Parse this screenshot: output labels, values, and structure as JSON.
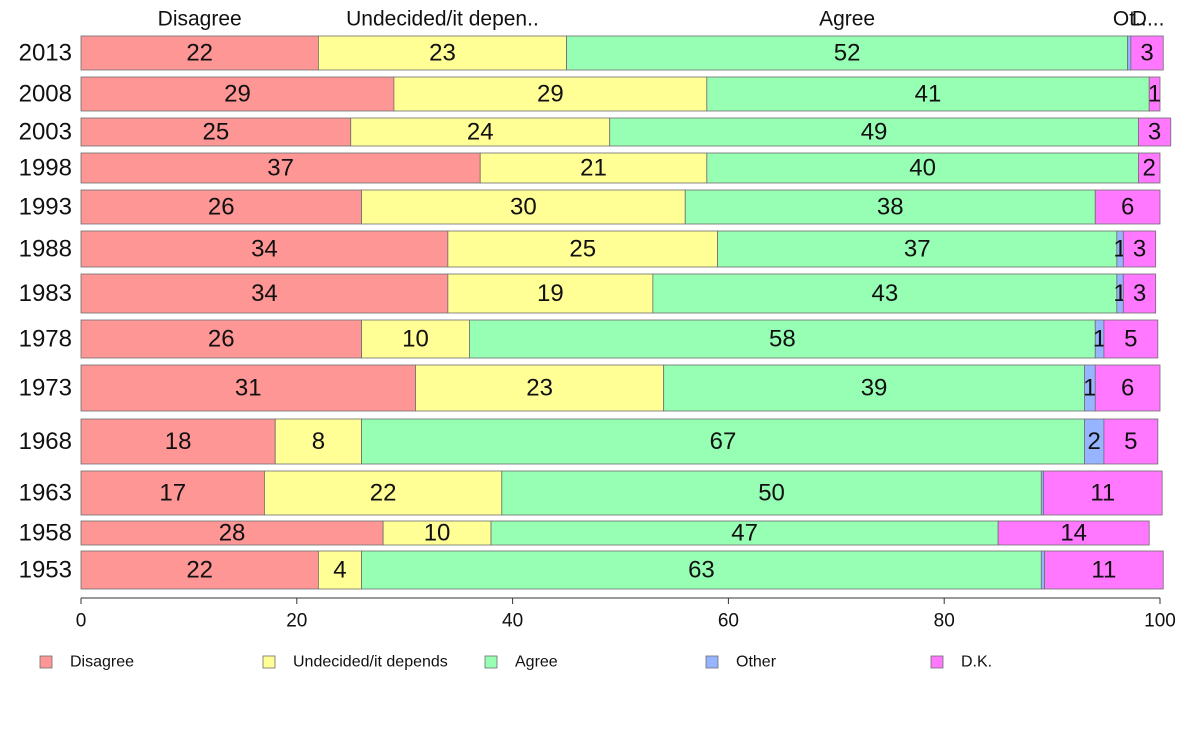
{
  "chart_data": {
    "type": "bar",
    "orientation": "horizontal",
    "stacked": true,
    "normalized_percent": true,
    "categories": [
      "2013",
      "2008",
      "2003",
      "1998",
      "1993",
      "1988",
      "1983",
      "1978",
      "1973",
      "1968",
      "1963",
      "1958",
      "1953"
    ],
    "column_headers": [
      "Disagree",
      "Undecided/it depen..",
      "Agree",
      "Ot..",
      "D..."
    ],
    "xlim": [
      0,
      100
    ],
    "x_ticks": [
      "0",
      "20",
      "40",
      "60",
      "80",
      "100"
    ],
    "grid": false,
    "legend_position": "bottom",
    "series": [
      {
        "name": "Disagree",
        "color": "#ff9696",
        "values": [
          22,
          29,
          25,
          37,
          26,
          34,
          34,
          26,
          31,
          18,
          17,
          28,
          22
        ],
        "labels": [
          "22",
          "29",
          "25",
          "37",
          "26",
          "34",
          "34",
          "26",
          "31",
          "18",
          "17",
          "28",
          "22"
        ]
      },
      {
        "name": "Undecided/it depends",
        "color": "#ffff96",
        "values": [
          23,
          29,
          24,
          21,
          30,
          25,
          19,
          10,
          23,
          8,
          22,
          10,
          4
        ],
        "labels": [
          "23",
          "29",
          "24",
          "21",
          "30",
          "25",
          "19",
          "10",
          "23",
          "8",
          "22",
          "10",
          "4"
        ]
      },
      {
        "name": "Agree",
        "color": "#96ffb4",
        "values": [
          52,
          41,
          49,
          40,
          38,
          37,
          43,
          58,
          39,
          67,
          50,
          47,
          63
        ],
        "labels": [
          "52",
          "41",
          "49",
          "40",
          "38",
          "37",
          "43",
          "58",
          "39",
          "67",
          "50",
          "47",
          "63"
        ]
      },
      {
        "name": "Other",
        "color": "#96b4ff",
        "values": [
          0.3,
          0,
          0,
          0,
          0,
          0.6,
          0.6,
          0.8,
          1,
          1.8,
          0.2,
          0,
          0.3
        ],
        "labels": [
          "",
          "",
          "",
          "",
          "",
          "1",
          "1",
          "1",
          "1",
          "2",
          "",
          "",
          ""
        ]
      },
      {
        "name": "D.K.",
        "color": "#ff78ff",
        "values": [
          3,
          1,
          3,
          2,
          6,
          3,
          3,
          5,
          6,
          5,
          11,
          14,
          11
        ],
        "labels": [
          "3",
          "1",
          "3",
          "2",
          "6",
          "3",
          "3",
          "5",
          "6",
          "5",
          "11",
          "14",
          "11"
        ]
      }
    ]
  }
}
